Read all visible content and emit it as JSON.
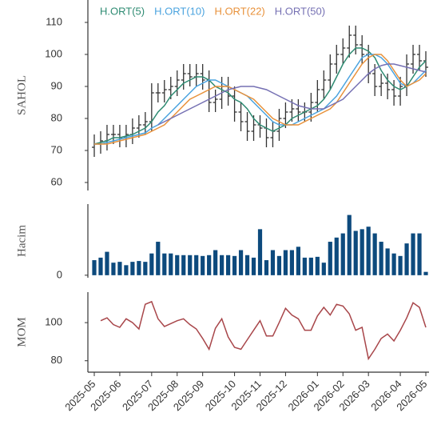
{
  "chart_data": [
    {
      "type": "ohlc",
      "ylabel": "SAHOL",
      "color": "#333333",
      "open": [
        71,
        72,
        73,
        75,
        75,
        74,
        75,
        77,
        78,
        79,
        88,
        88,
        89,
        90,
        92,
        94,
        93,
        94,
        92,
        85,
        86,
        90,
        87,
        82,
        79,
        76,
        78,
        77,
        74,
        76,
        80,
        82,
        83,
        82,
        82,
        85,
        89,
        92,
        97,
        100,
        102,
        106,
        103,
        100,
        94,
        90,
        91,
        89,
        87,
        90,
        97,
        100,
        98
      ],
      "high": [
        75,
        76,
        78,
        78,
        78,
        78,
        80,
        81,
        82,
        91,
        91,
        92,
        93,
        95,
        97,
        97,
        97,
        97,
        95,
        89,
        93,
        93,
        90,
        85,
        82,
        81,
        81,
        80,
        79,
        83,
        85,
        86,
        86,
        85,
        88,
        92,
        95,
        100,
        103,
        105,
        109,
        109,
        106,
        103,
        97,
        94,
        94,
        92,
        93,
        100,
        103,
        103,
        101
      ],
      "low": [
        68,
        69,
        70,
        72,
        71,
        71,
        72,
        74,
        75,
        76,
        85,
        85,
        86,
        87,
        89,
        90,
        90,
        89,
        82,
        82,
        83,
        84,
        79,
        76,
        73,
        73,
        74,
        71,
        71,
        73,
        77,
        79,
        79,
        79,
        79,
        82,
        86,
        89,
        94,
        97,
        99,
        100,
        97,
        91,
        87,
        87,
        86,
        84,
        84,
        87,
        94,
        95,
        93
      ],
      "close": [
        72,
        73,
        75,
        75,
        74,
        75,
        77,
        78,
        79,
        88,
        88,
        89,
        90,
        92,
        94,
        93,
        94,
        92,
        85,
        86,
        90,
        87,
        82,
        79,
        76,
        78,
        77,
        74,
        76,
        80,
        82,
        83,
        82,
        82,
        85,
        89,
        92,
        97,
        100,
        102,
        106,
        103,
        100,
        94,
        90,
        91,
        89,
        87,
        90,
        97,
        100,
        98,
        96
      ],
      "series": [
        {
          "name": "H.ORT(5)",
          "color": "#2e8b72",
          "values": [
            72,
            72.5,
            73,
            74,
            74,
            74.5,
            75,
            76,
            77,
            79,
            82,
            84,
            87,
            89,
            91,
            92,
            93,
            93,
            92,
            90,
            89,
            88,
            86,
            85,
            83,
            80,
            78,
            77,
            76,
            77,
            78,
            80,
            81,
            82,
            83,
            84,
            86,
            89,
            93,
            97,
            100,
            102,
            102,
            101,
            99,
            95,
            92,
            90,
            89,
            90,
            93,
            96,
            98
          ]
        },
        {
          "name": "H.ORT(10)",
          "color": "#4aa3df",
          "values": [
            72,
            72,
            72.5,
            73,
            73.5,
            74,
            74.5,
            75,
            75.5,
            77,
            78,
            80,
            82,
            84,
            86,
            88,
            90,
            91,
            92,
            92,
            91,
            90,
            89,
            88,
            87,
            85,
            83,
            81,
            79,
            78,
            78,
            78,
            79,
            80,
            81,
            82,
            83,
            85,
            87,
            90,
            93,
            96,
            99,
            100,
            100,
            99,
            97,
            94,
            91,
            90,
            91,
            93,
            95
          ]
        },
        {
          "name": "H.ORT(22)",
          "color": "#e8913a",
          "values": [
            72,
            72,
            72,
            72.5,
            73,
            73.5,
            74,
            74.5,
            75,
            76,
            77,
            78,
            80,
            82,
            84,
            86,
            87,
            88,
            89,
            90,
            90,
            90,
            89,
            88,
            87,
            86,
            84,
            82,
            80,
            79,
            78,
            78,
            78,
            79,
            80,
            81,
            82,
            83,
            85,
            88,
            91,
            94,
            97,
            99,
            100,
            100,
            98,
            95,
            92,
            90,
            91,
            92,
            94
          ]
        },
        {
          "name": "H.ORT(50)",
          "color": "#7570b3",
          "values": [
            null,
            null,
            null,
            null,
            null,
            null,
            null,
            null,
            null,
            null,
            78,
            79,
            80,
            81,
            82,
            83,
            84,
            85,
            86,
            87,
            88,
            89,
            89.5,
            90,
            90,
            90,
            89.5,
            89,
            88,
            87,
            86,
            85,
            84,
            83.5,
            83,
            83,
            83,
            84,
            85,
            86,
            88,
            90,
            92,
            94,
            95.5,
            96.5,
            97,
            97,
            96.5,
            96,
            95.5,
            95,
            94.5
          ]
        }
      ],
      "ylim": [
        57.5,
        117
      ],
      "yticks": [
        60,
        70,
        80,
        90,
        100,
        110
      ]
    },
    {
      "type": "bar",
      "ylabel": "Hacim",
      "color": "#0d4a7d",
      "values": [
        18,
        21,
        28,
        15,
        16,
        12,
        16,
        17,
        16,
        26,
        40,
        26,
        26,
        24,
        24,
        24,
        24,
        23,
        24,
        30,
        24,
        24,
        23,
        30,
        24,
        21,
        55,
        18,
        30,
        23,
        30,
        30,
        34,
        21,
        21,
        22,
        15,
        40,
        45,
        50,
        72,
        53,
        55,
        58,
        50,
        40,
        32,
        26,
        23,
        38,
        50,
        50,
        4
      ],
      "ylim": [
        -3,
        85
      ],
      "yticks": [
        0
      ]
    },
    {
      "type": "line",
      "ylabel": "MOM",
      "color": "#a8464a",
      "categories": [
        "2025-05",
        null,
        null,
        null,
        "2025-06",
        null,
        null,
        null,
        null,
        "2025-07",
        null,
        null,
        null,
        "2025-08",
        null,
        null,
        null,
        "2025-09",
        null,
        null,
        null,
        null,
        "2025-10",
        null,
        null,
        null,
        "2025-11",
        null,
        null,
        null,
        "2025-12",
        null,
        null,
        null,
        null,
        "2026-01",
        null,
        null,
        null,
        "2026-02",
        null,
        null,
        null,
        "2026-03",
        null,
        null,
        null,
        null,
        "2026-04",
        null,
        null,
        null,
        "2026-05"
      ],
      "values": [
        null,
        101,
        102.5,
        99,
        97.5,
        102,
        100,
        96.7,
        109.6,
        111,
        102,
        98,
        99.5,
        101,
        102,
        99,
        96.7,
        91.7,
        86,
        97,
        102,
        92.5,
        87,
        86,
        91,
        96,
        101,
        93,
        93,
        100,
        107.5,
        104,
        102,
        96,
        96,
        103.5,
        108,
        104,
        109.6,
        108.7,
        104.6,
        96,
        97.5,
        81,
        86,
        91.7,
        94,
        90.4,
        96,
        102.5,
        110.4,
        108,
        97.5
      ],
      "ylim": [
        74,
        116
      ],
      "yticks": [
        80,
        100
      ]
    }
  ]
}
